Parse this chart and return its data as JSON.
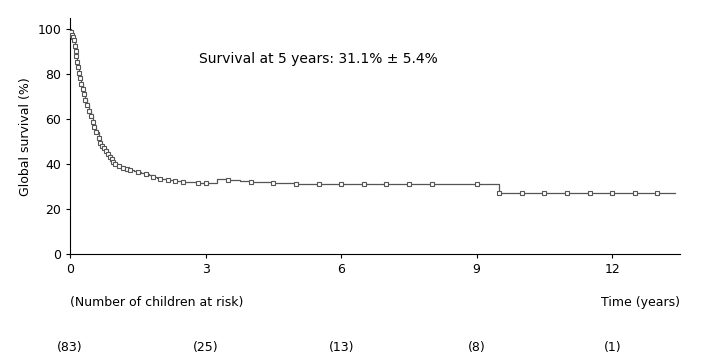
{
  "annotation": "Survival at 5 years: 31.1% ± 5.4%",
  "ylabel": "Global survival (%)",
  "xlabel_left": "(Number of children at risk)",
  "xlabel_right": "Time (years)",
  "xlim": [
    0,
    13.5
  ],
  "ylim": [
    0,
    105
  ],
  "xticks": [
    0,
    3,
    6,
    9,
    12
  ],
  "yticks": [
    0,
    20,
    40,
    60,
    80,
    100
  ],
  "risk_table_times": [
    0,
    3,
    6,
    9,
    12
  ],
  "risk_table_counts": [
    "(83)",
    "(25)",
    "(13)",
    "(8)",
    "(1)"
  ],
  "km_times": [
    0.0,
    0.02,
    0.04,
    0.06,
    0.08,
    0.1,
    0.12,
    0.14,
    0.16,
    0.18,
    0.2,
    0.22,
    0.25,
    0.28,
    0.31,
    0.34,
    0.38,
    0.42,
    0.46,
    0.5,
    0.54,
    0.58,
    0.63,
    0.67,
    0.71,
    0.75,
    0.79,
    0.83,
    0.88,
    0.92,
    0.96,
    1.0,
    1.08,
    1.17,
    1.25,
    1.33,
    1.42,
    1.5,
    1.58,
    1.67,
    1.75,
    1.83,
    1.92,
    2.0,
    2.17,
    2.33,
    2.5,
    2.67,
    2.83,
    3.0,
    3.25,
    3.5,
    3.75,
    4.0,
    4.5,
    5.0,
    5.5,
    6.0,
    6.5,
    7.0,
    7.5,
    8.0,
    9.0,
    9.5,
    10.0,
    10.5,
    11.0,
    11.5,
    12.0,
    12.5,
    13.0,
    13.4
  ],
  "km_survival": [
    100,
    98.8,
    97.6,
    96.4,
    95.2,
    92.8,
    90.4,
    88.0,
    85.6,
    83.2,
    80.8,
    78.4,
    75.9,
    73.5,
    71.1,
    68.7,
    66.3,
    63.9,
    61.4,
    59.0,
    56.6,
    54.2,
    51.8,
    49.4,
    48.2,
    47.0,
    45.8,
    44.6,
    43.4,
    42.2,
    41.0,
    40.0,
    39.0,
    38.5,
    38.0,
    37.5,
    37.0,
    36.5,
    36.0,
    35.5,
    35.0,
    34.5,
    34.0,
    33.5,
    33.0,
    32.5,
    32.2,
    32.0,
    31.7,
    31.5,
    33.5,
    33.0,
    32.5,
    32.0,
    31.5,
    31.0,
    31.0,
    31.0,
    31.0,
    31.0,
    31.0,
    31.0,
    31.0,
    27.0,
    27.0,
    27.0,
    27.0,
    27.0,
    27.0,
    27.0,
    27.0,
    27.0
  ],
  "censor_times": [
    0.02,
    0.04,
    0.06,
    0.08,
    0.1,
    0.12,
    0.14,
    0.16,
    0.18,
    0.2,
    0.22,
    0.25,
    0.28,
    0.31,
    0.34,
    0.38,
    0.42,
    0.46,
    0.5,
    0.54,
    0.58,
    0.63,
    0.67,
    0.71,
    0.75,
    0.79,
    0.83,
    0.88,
    0.92,
    0.96,
    1.0,
    1.08,
    1.17,
    1.25,
    1.33,
    1.5,
    1.67,
    1.83,
    2.0,
    2.17,
    2.33,
    2.5,
    2.83,
    3.0,
    3.5,
    4.0,
    4.5,
    5.0,
    5.5,
    6.0,
    6.5,
    7.0,
    7.5,
    8.0,
    9.0,
    9.5,
    10.0,
    10.5,
    11.0,
    11.5,
    12.0,
    12.5,
    13.0
  ],
  "censor_survival": [
    98.8,
    97.6,
    96.4,
    95.2,
    92.8,
    90.4,
    88.0,
    85.6,
    83.2,
    80.8,
    78.4,
    75.9,
    73.5,
    71.1,
    68.7,
    66.3,
    63.9,
    61.4,
    59.0,
    56.6,
    54.2,
    51.8,
    49.4,
    48.2,
    47.0,
    45.8,
    44.6,
    43.4,
    42.2,
    41.0,
    40.0,
    39.0,
    38.5,
    38.0,
    37.5,
    36.5,
    35.5,
    34.5,
    33.5,
    33.0,
    32.5,
    32.2,
    31.7,
    31.5,
    33.0,
    32.0,
    31.5,
    31.0,
    31.0,
    31.0,
    31.0,
    31.0,
    31.0,
    31.0,
    31.0,
    27.0,
    27.0,
    27.0,
    27.0,
    27.0,
    27.0,
    27.0,
    27.0
  ],
  "line_color": "#555555",
  "marker_color": "#555555",
  "bg_color": "#ffffff",
  "font_size": 9,
  "annotation_fontsize": 10
}
